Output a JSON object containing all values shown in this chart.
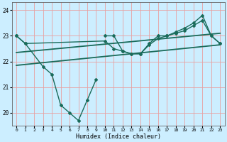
{
  "xlabel": "Humidex (Indice chaleur)",
  "bg_color": "#cceeff",
  "line_color": "#1a6b5a",
  "grid_color": "#e8a0a0",
  "xlim": [
    -0.5,
    23.5
  ],
  "ylim": [
    19.5,
    24.3
  ],
  "yticks": [
    20,
    21,
    22,
    23,
    24
  ],
  "xticks": [
    0,
    1,
    2,
    3,
    4,
    5,
    6,
    7,
    8,
    9,
    10,
    11,
    12,
    13,
    14,
    15,
    16,
    17,
    18,
    19,
    20,
    21,
    22,
    23
  ],
  "series": [
    {
      "x": [
        0,
        1,
        3,
        4,
        5,
        6,
        7,
        8,
        9
      ],
      "y": [
        23.0,
        22.7,
        21.8,
        21.5,
        20.3,
        20.0,
        19.7,
        20.5,
        21.3
      ],
      "marker": "D",
      "lw": 1.0,
      "ms": 2.0
    },
    {
      "x": [
        10,
        11,
        12,
        13,
        14,
        15,
        16,
        17,
        18,
        19,
        20,
        21,
        22,
        23
      ],
      "y": [
        23.0,
        23.0,
        22.4,
        22.3,
        22.3,
        22.7,
        23.0,
        23.0,
        23.15,
        23.3,
        23.5,
        23.8,
        23.0,
        22.7
      ],
      "marker": "D",
      "lw": 1.0,
      "ms": 2.0
    },
    {
      "x": [
        0,
        1,
        10,
        11,
        12,
        13,
        14,
        15,
        16,
        17,
        18,
        19,
        20,
        21,
        22,
        23
      ],
      "y": [
        23.0,
        22.7,
        22.8,
        22.5,
        22.4,
        22.3,
        22.3,
        22.65,
        22.9,
        23.0,
        23.1,
        23.2,
        23.4,
        23.6,
        23.0,
        22.7
      ],
      "marker": "D",
      "lw": 1.0,
      "ms": 2.0
    },
    {
      "x": [
        0,
        23
      ],
      "y": [
        21.85,
        22.65
      ],
      "marker": null,
      "lw": 1.3,
      "ms": 0
    },
    {
      "x": [
        0,
        23
      ],
      "y": [
        22.35,
        23.1
      ],
      "marker": null,
      "lw": 1.3,
      "ms": 0
    }
  ]
}
